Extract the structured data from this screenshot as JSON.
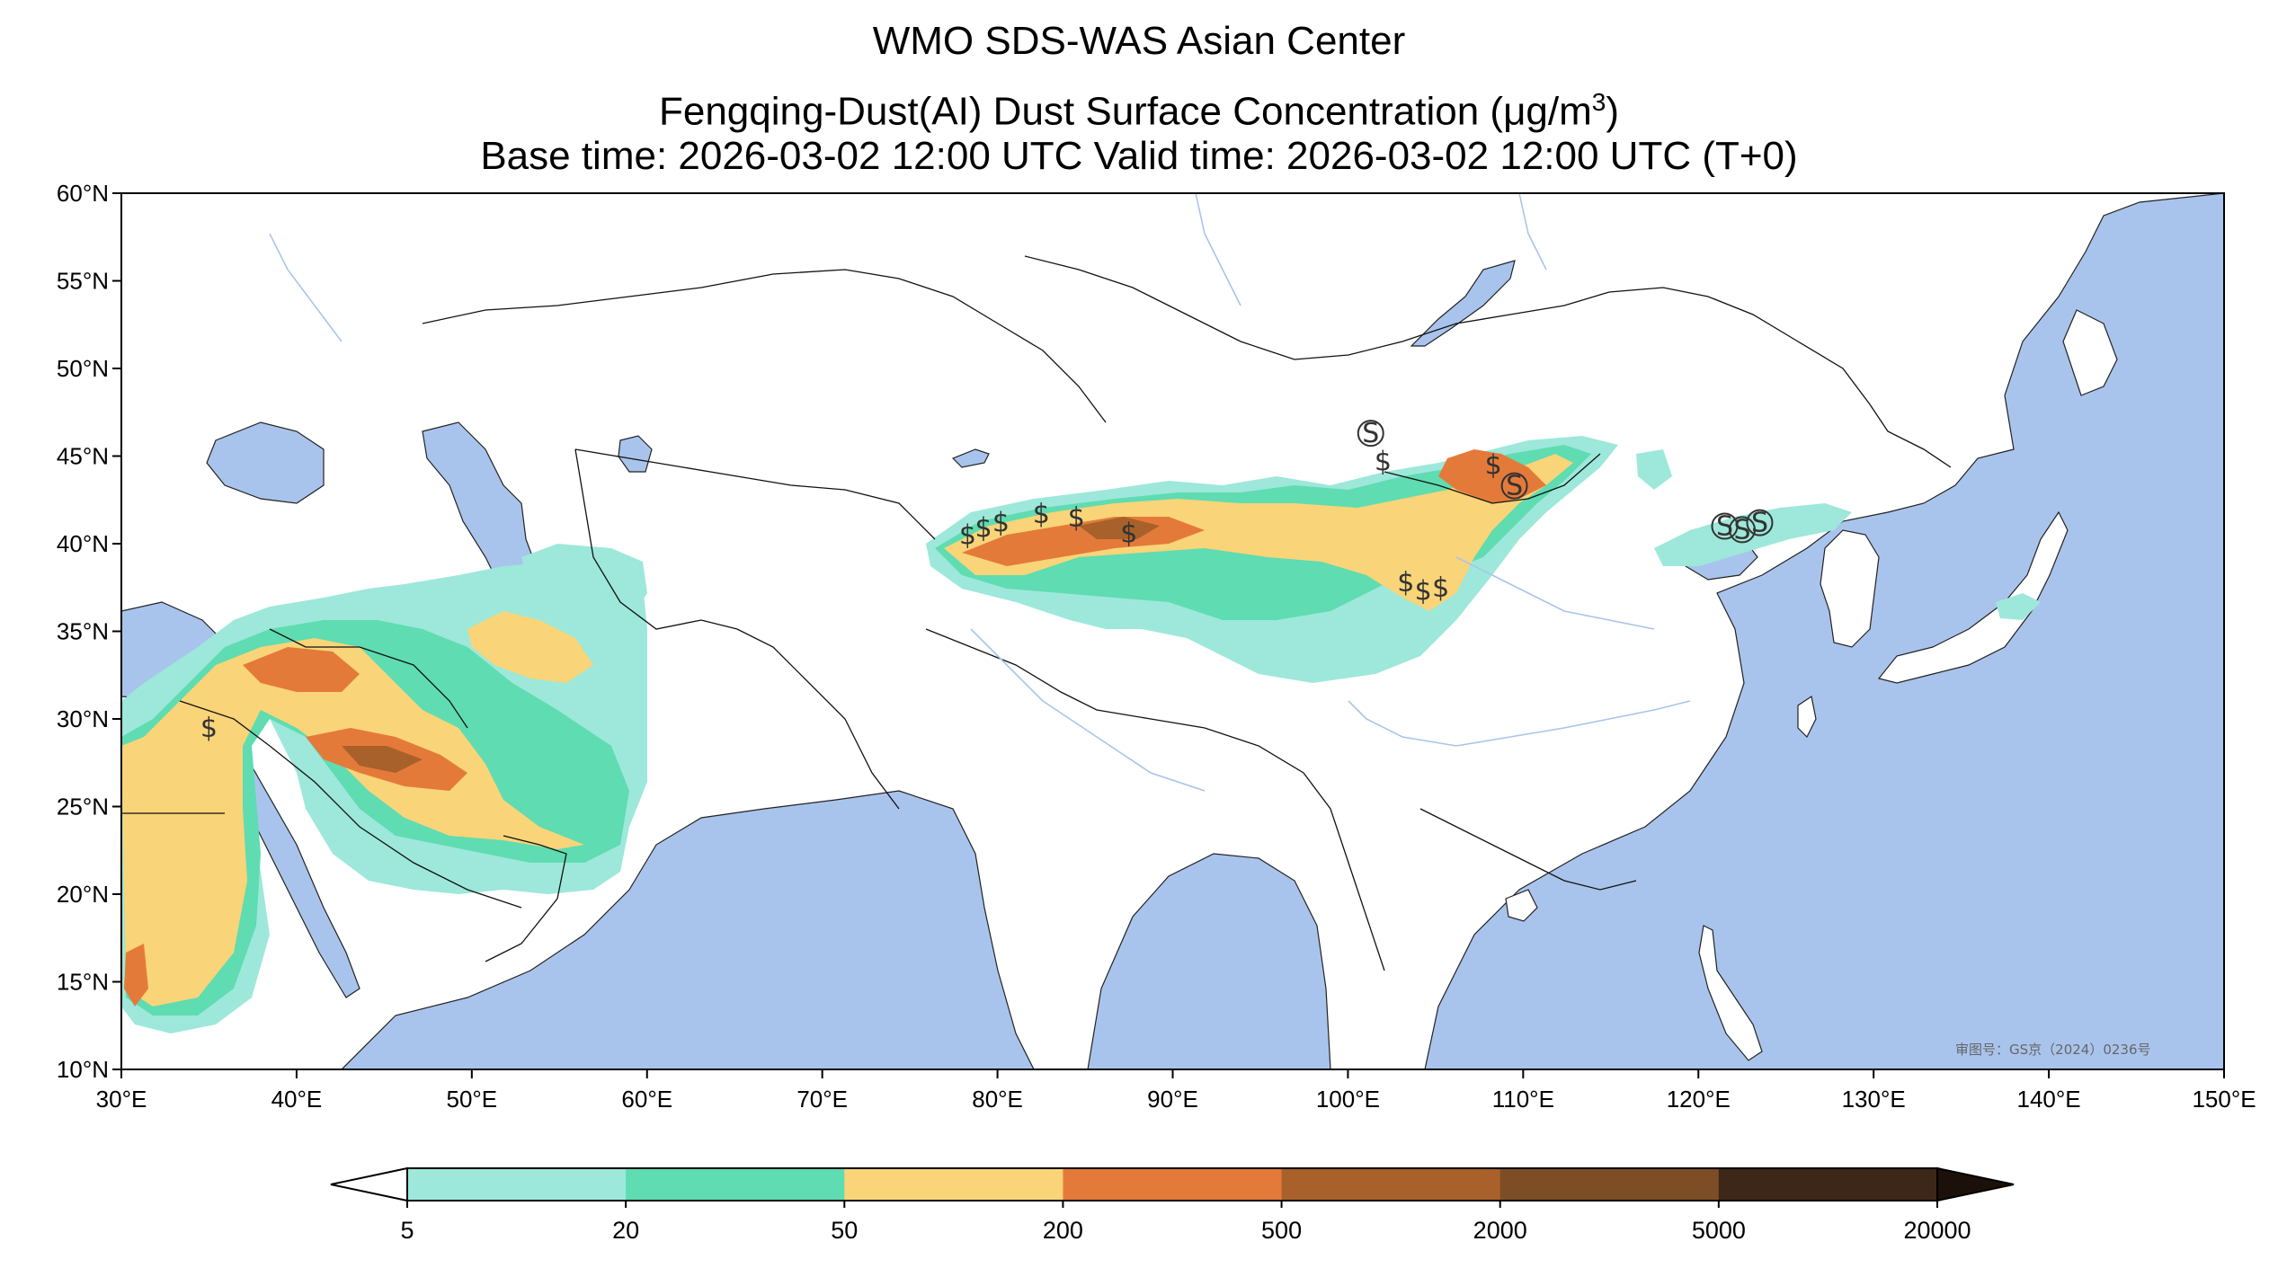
{
  "title": {
    "line1": "WMO SDS-WAS Asian Center",
    "line2_prefix": "Fengqing-Dust(AI) Dust Surface Concentration (",
    "line2_mu": "μ",
    "line2_unit": "g/m",
    "line2_exp": "3",
    "line2_suffix": ")",
    "line3": "Base time: 2026-03-02 12:00 UTC Valid time: 2026-03-02 12:00 UTC (T+0)"
  },
  "map": {
    "lon_range": [
      30,
      150
    ],
    "lat_range": [
      10,
      60
    ],
    "lon_ticks": [
      "30°E",
      "40°E",
      "50°E",
      "60°E",
      "70°E",
      "80°E",
      "90°E",
      "100°E",
      "110°E",
      "120°E",
      "130°E",
      "140°E",
      "150°E"
    ],
    "lat_ticks": [
      "10°N",
      "15°N",
      "20°N",
      "25°N",
      "30°N",
      "35°N",
      "40°N",
      "45°N",
      "50°N",
      "55°N",
      "60°N"
    ],
    "ocean_color": "#a9c4ec",
    "land_color": "#ffffff",
    "approval_number": "审图号：GS京（2024）0236号"
  },
  "colorbar": {
    "levels": [
      "5",
      "20",
      "50",
      "200",
      "500",
      "2000",
      "5000",
      "20000"
    ],
    "colors": [
      "#9de8da",
      "#5fdcb1",
      "#f9d478",
      "#e47a3a",
      "#a8612a",
      "#7d4d26",
      "#3c2718"
    ],
    "extend_min_color": "#ffffff",
    "extend_max_color": "#1c110a"
  },
  "dust_symbols": {
    "glyph": "$",
    "circled_glyph": "S"
  }
}
